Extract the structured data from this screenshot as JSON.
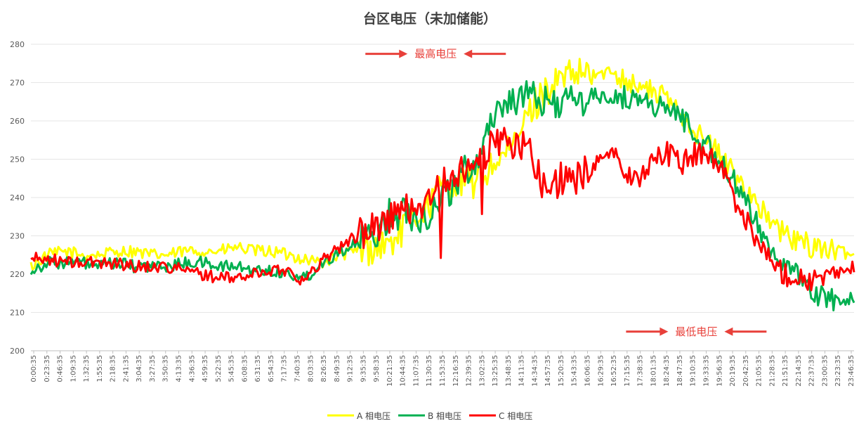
{
  "chart_data": {
    "type": "line",
    "title": "台区电压（未加储能）",
    "xlabel": "",
    "ylabel": "",
    "ylim": [
      200,
      280
    ],
    "yticks": [
      200,
      210,
      220,
      230,
      240,
      250,
      260,
      270,
      280
    ],
    "grid": true,
    "legend_position": "bottom",
    "x_tick_labels": [
      "0:00:35",
      "0:23:35",
      "0:46:35",
      "1:09:35",
      "1:32:35",
      "1:55:35",
      "2:18:35",
      "2:41:35",
      "3:04:35",
      "3:27:35",
      "3:50:35",
      "4:13:35",
      "4:36:35",
      "4:59:35",
      "5:22:35",
      "5:45:35",
      "6:08:35",
      "6:31:35",
      "6:54:35",
      "7:17:35",
      "7:40:35",
      "8:03:35",
      "8:26:35",
      "8:49:35",
      "9:12:35",
      "9:35:35",
      "9:58:35",
      "10:21:35",
      "10:44:35",
      "11:07:35",
      "11:30:35",
      "11:53:35",
      "12:16:35",
      "12:39:35",
      "13:02:35",
      "13:25:35",
      "13:48:35",
      "14:11:35",
      "14:34:35",
      "14:57:35",
      "15:20:35",
      "15:43:35",
      "16:06:35",
      "16:29:35",
      "16:52:35",
      "17:15:35",
      "17:38:35",
      "18:01:35",
      "18:24:35",
      "18:47:35",
      "19:10:35",
      "19:33:35",
      "19:56:35",
      "20:19:35",
      "20:42:35",
      "21:05:35",
      "21:28:35",
      "21:51:35",
      "22:14:35",
      "22:37:35",
      "23:00:35",
      "23:23:35",
      "23:46:35"
    ],
    "x_hours": [
      0,
      0.5,
      1,
      1.5,
      2,
      2.5,
      3,
      3.5,
      4,
      4.5,
      5,
      5.5,
      6,
      6.5,
      7,
      7.5,
      8,
      8.5,
      9,
      9.5,
      10,
      10.5,
      11,
      11.5,
      12,
      12.5,
      13,
      13.5,
      14,
      14.5,
      15,
      15.5,
      16,
      16.5,
      17,
      17.5,
      18,
      18.5,
      19,
      19.5,
      20,
      20.5,
      21,
      21.5,
      22,
      22.5,
      23,
      23.5,
      24
    ],
    "series": [
      {
        "name": "A 相电压",
        "color": "#ffff00",
        "values": [
          222,
          225,
          226,
          225,
          225,
          226,
          226,
          225,
          225,
          226,
          226,
          226,
          227,
          226,
          226,
          225,
          224,
          223,
          225,
          226,
          227,
          228,
          234,
          237,
          243,
          244,
          244,
          249,
          252,
          262,
          268,
          271,
          272,
          272,
          273,
          270,
          268,
          266,
          262,
          256,
          252,
          246,
          241,
          234,
          230,
          228,
          227,
          226,
          225
        ]
      },
      {
        "name": "B 相电压",
        "color": "#00b050",
        "values": [
          221,
          223,
          223,
          223,
          222,
          223,
          222,
          222,
          222,
          223,
          223,
          222,
          222,
          221,
          221,
          220,
          219,
          223,
          226,
          228,
          230,
          236,
          236,
          235,
          240,
          245,
          250,
          262,
          266,
          266,
          265,
          265,
          265,
          266,
          266,
          266,
          265,
          263,
          261,
          255,
          251,
          244,
          236,
          228,
          222,
          218,
          214,
          213,
          214
        ]
      },
      {
        "name": "C 相电压",
        "color": "#ff0000",
        "values": [
          224,
          224,
          223,
          223,
          223,
          223,
          222,
          222,
          222,
          221,
          220,
          219,
          219,
          220,
          221,
          221,
          218,
          224,
          227,
          230,
          232,
          235,
          237,
          239,
          243,
          246,
          248,
          255,
          254,
          253,
          242,
          245,
          245,
          250,
          252,
          244,
          248,
          252,
          249,
          252,
          250,
          240,
          232,
          224,
          220,
          219,
          218,
          220,
          222
        ]
      }
    ],
    "annotations": [
      {
        "text": "最高电压",
        "x_hour": 11.8,
        "y": 277.5
      },
      {
        "text": "最低电压",
        "x_hour": 19.4,
        "y": 205
      }
    ]
  }
}
